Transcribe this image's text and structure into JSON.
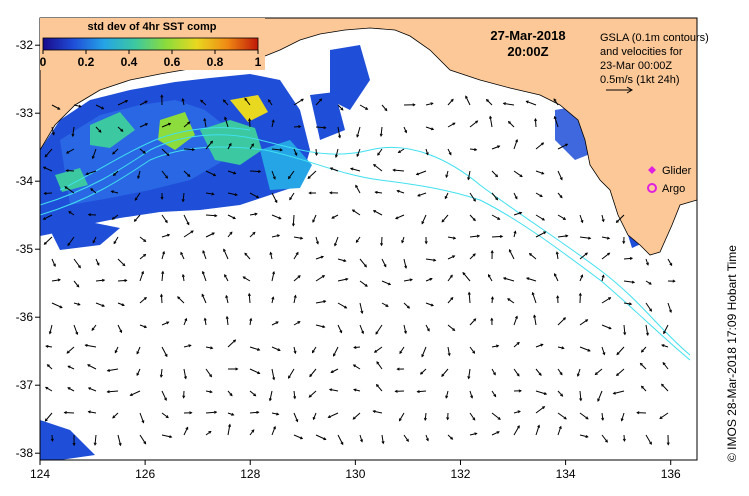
{
  "header": {
    "date": "27-Mar-2018",
    "time": "20:00Z"
  },
  "colorbar": {
    "title": "std dev of 4hr SST comp",
    "ticks": [
      "0",
      "0.2",
      "0.4",
      "0.6",
      "0.8",
      "1"
    ],
    "range": [
      0,
      1
    ],
    "stops": [
      "#1a0a8c",
      "#1f4ed8",
      "#25a4e6",
      "#3cc8a0",
      "#8bdc3c",
      "#e8d820",
      "#f08a14",
      "#c01808"
    ]
  },
  "gsla_note": {
    "lines": [
      "GSLA (0.1m contours)",
      "and velocities for",
      "23-Mar 00:00Z",
      "0.5m/s (1kt 24h)"
    ]
  },
  "legend": {
    "items": [
      {
        "label": "Glider",
        "color": "#e020e0",
        "symbol": "diamond"
      },
      {
        "label": "Argo",
        "color": "#e020e0",
        "symbol": "ring"
      }
    ]
  },
  "axes": {
    "x_ticks": [
      "124",
      "126",
      "128",
      "130",
      "132",
      "134",
      "136"
    ],
    "y_ticks": [
      "-32",
      "-33",
      "-34",
      "-35",
      "-36",
      "-37",
      "-38"
    ],
    "x_range": [
      124,
      136.5
    ],
    "y_range": [
      -38.1,
      -31.6
    ]
  },
  "credit": "© IMOS 28-Mar-2018 17:09 Hobart Time",
  "colors": {
    "land": "#fcc898",
    "contour": "#40e0f0",
    "arrow": "#000000"
  }
}
